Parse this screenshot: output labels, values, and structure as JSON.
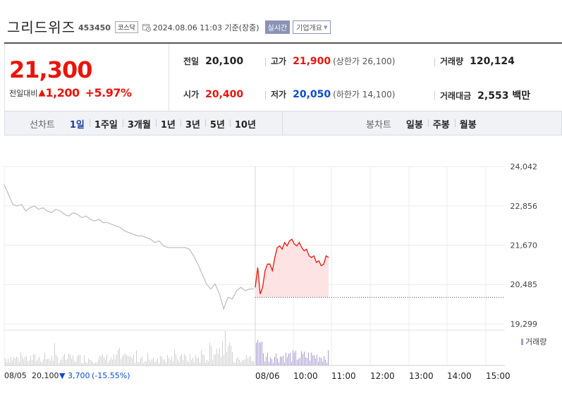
{
  "header": {
    "stock_name": "그리드위즈",
    "stock_code": "453450",
    "market": "코스닥",
    "date_text": "2024.08.06 11:03 기준(장중)",
    "realtime_label": "실시간",
    "company_overview_label": "기업개요"
  },
  "quote": {
    "current_price": "21,300",
    "change_label": "전일대비",
    "change_value": "1,200",
    "change_percent": "+5.97%",
    "prev_close_label": "전일",
    "prev_close": "20,100",
    "open_label": "시가",
    "open": "20,400",
    "high_label": "고가",
    "high": "21,900",
    "upper_limit": "(상한가 26,100)",
    "low_label": "저가",
    "low": "20,050",
    "lower_limit": "(하한가 14,100)",
    "volume_label": "거래량",
    "volume": "120,124",
    "amount_label": "거래대금",
    "amount": "2,553 백만"
  },
  "tabs": {
    "line_chart_label": "선차트",
    "line_tabs": [
      "1일",
      "1주일",
      "3개월",
      "1년",
      "3년",
      "5년",
      "10년"
    ],
    "active_tab": "1일",
    "candle_chart_label": "봉차트",
    "candle_tabs": [
      "일봉",
      "주봉",
      "월봉"
    ]
  },
  "colors": {
    "up": "#e8150b",
    "down": "#0a4cd0",
    "prev_day_line": "#bbbbbb",
    "today_fill": "#fde3e3",
    "volume_prev": "#cfcfcf",
    "volume_today": "#a99bd3",
    "accent": "#1b3f9c"
  },
  "chart_data": {
    "type": "line",
    "y_ticks": [
      "24,042",
      "22,856",
      "21,670",
      "20,485",
      "19,299"
    ],
    "ylim": [
      19299,
      24042
    ],
    "baseline_price": 20100,
    "x_ticks": [
      "08/05",
      "08/06",
      "10:00",
      "11:00",
      "12:00",
      "13:00",
      "14:00",
      "15:00"
    ],
    "volume_legend": "거래량",
    "prev_day_footer": {
      "date": "08/05",
      "close": "20,100",
      "change": "▼ 3,700",
      "change_percent": "(-15.55%)"
    },
    "series": [
      {
        "x_units": "08/05 session",
        "values": [
          23500,
          23200,
          22900,
          22850,
          22900,
          22700,
          22800,
          22850,
          22750,
          22800,
          22700,
          22650,
          22750,
          22700,
          22600,
          22550,
          22650,
          22600,
          22500,
          22550,
          22450,
          22400,
          22450,
          22350,
          22350,
          22300,
          22250,
          22200,
          22100,
          22050,
          22000,
          21950,
          21950,
          21900,
          21850,
          21750,
          21800,
          21650,
          21600,
          21600,
          21600,
          21600,
          21600,
          21550,
          21350,
          21100,
          20800,
          20500,
          20350,
          20500,
          20200,
          19750,
          20100,
          20050,
          20300,
          20400,
          20300,
          20350,
          20350
        ]
      },
      {
        "x_units": "08/06 session to 11:03",
        "values": [
          20400,
          21000,
          20200,
          20400,
          20900,
          21100,
          21100,
          20900,
          21300,
          21600,
          21650,
          21550,
          21750,
          21650,
          21800,
          21850,
          21700,
          21650,
          21750,
          21600,
          21500,
          21550,
          21350,
          21300,
          21350,
          21150,
          21200,
          21050,
          21100,
          21350,
          21300
        ]
      }
    ]
  }
}
